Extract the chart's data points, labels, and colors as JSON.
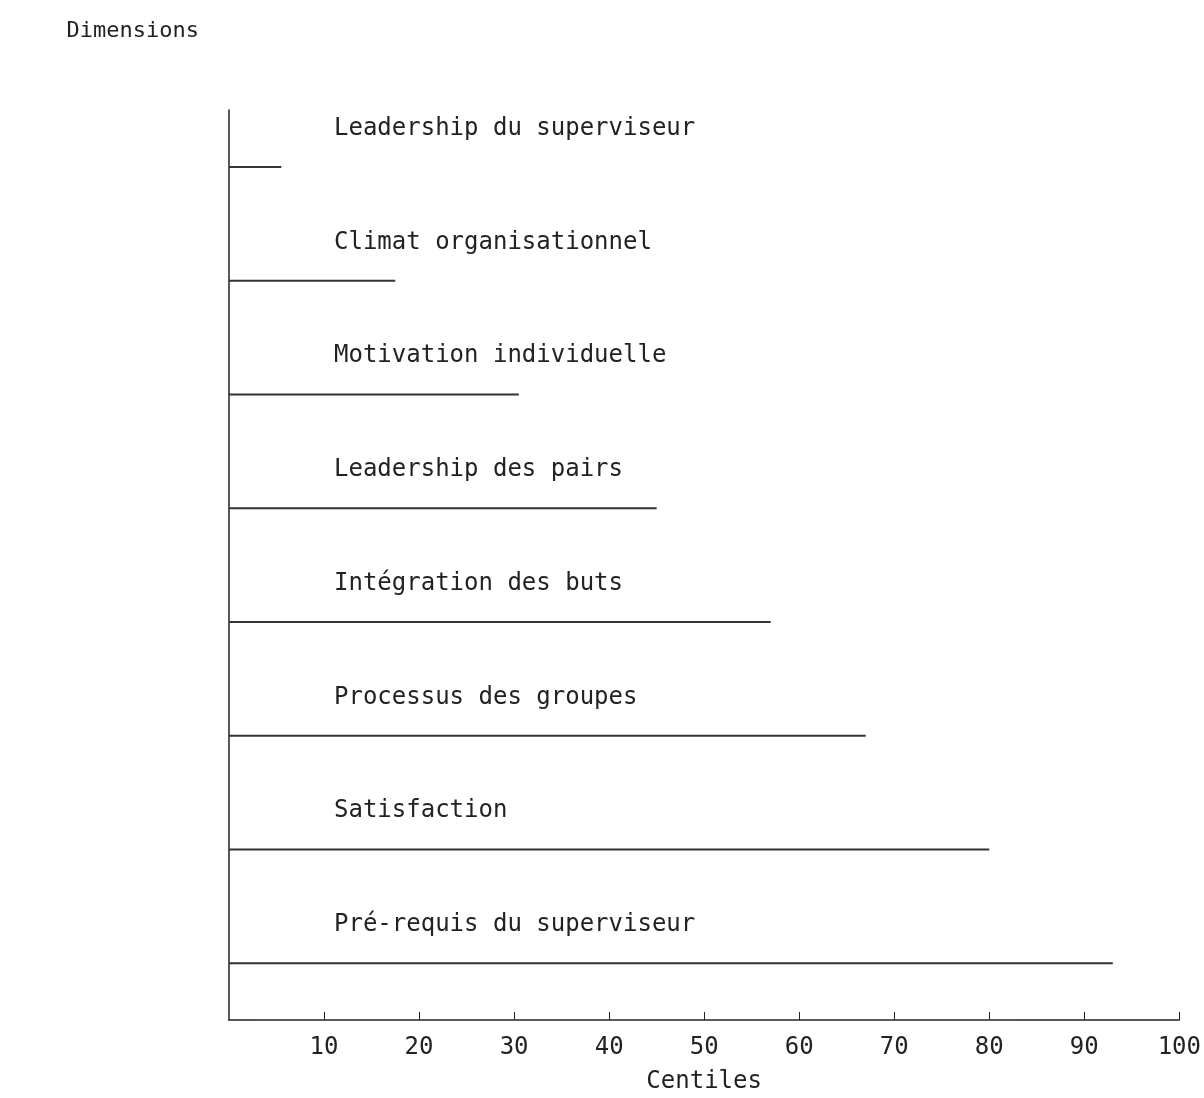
{
  "chart_data": {
    "type": "bar",
    "orientation": "horizontal",
    "ylabel": "Dimensions",
    "xlabel": "Centiles",
    "categories": [
      "Leadership du superviseur",
      "Climat organisationnel",
      "Motivation individuelle",
      "Leadership des pairs",
      "Intégration des buts",
      "Processus des groupes",
      "Satisfaction",
      "Pré-requis du superviseur"
    ],
    "values": [
      5.5,
      17.5,
      30.5,
      45,
      57,
      67,
      80,
      93
    ],
    "color": "#333333",
    "xlim": [
      0,
      100
    ],
    "xticks": [
      10,
      20,
      30,
      40,
      50,
      60,
      70,
      80,
      90,
      100
    ],
    "grid": false
  }
}
